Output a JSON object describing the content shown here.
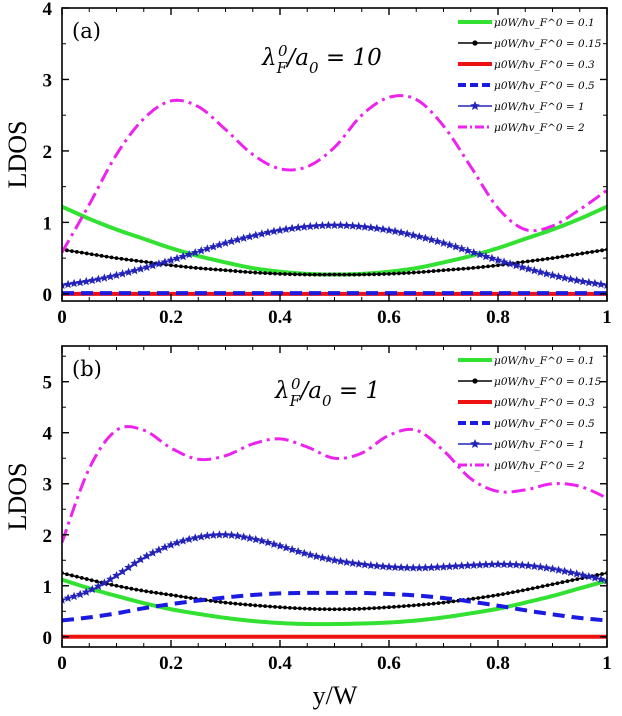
{
  "figure": {
    "xlabel": "y/W",
    "colors": {
      "mu_0.1": "#33e133",
      "mu_0.15": "#000000",
      "mu_0.3": "#ee1111",
      "mu_0.5": "#1a1ae0",
      "mu_1": "#2323b8",
      "mu_2": "#ee22ee"
    }
  },
  "chart_data": [
    {
      "type": "line",
      "panel_label": "(a)",
      "annotation": "λ_F^0/a_0 = 10",
      "xlabel": "",
      "ylabel": "LDOS",
      "xlim": [
        0,
        1
      ],
      "ylim": [
        -0.1,
        4
      ],
      "xticks": [
        "0",
        "0.2",
        "0.4",
        "0.6",
        "0.8",
        "1"
      ],
      "yticks": [
        "0",
        "1",
        "2",
        "3",
        "4"
      ],
      "grid": false,
      "legend_position": "top-right",
      "series": [
        {
          "name": "μ0W/ħv_F^0 = 0.1",
          "key": "mu_0.1",
          "x": [
            0,
            0.05,
            0.1,
            0.15,
            0.2,
            0.25,
            0.3,
            0.35,
            0.4,
            0.45,
            0.5,
            0.55,
            0.6,
            0.65,
            0.7,
            0.75,
            0.8,
            0.85,
            0.9,
            0.95,
            1
          ],
          "y": [
            1.22,
            1.05,
            0.9,
            0.77,
            0.64,
            0.53,
            0.44,
            0.36,
            0.31,
            0.28,
            0.27,
            0.28,
            0.31,
            0.36,
            0.44,
            0.53,
            0.64,
            0.77,
            0.9,
            1.05,
            1.22
          ]
        },
        {
          "name": "μ0W/ħv_F^0 = 0.15",
          "key": "mu_0.15",
          "x": [
            0,
            0.05,
            0.1,
            0.15,
            0.2,
            0.25,
            0.3,
            0.35,
            0.4,
            0.45,
            0.5,
            0.55,
            0.6,
            0.65,
            0.7,
            0.75,
            0.8,
            0.85,
            0.9,
            0.95,
            1
          ],
          "y": [
            0.62,
            0.56,
            0.5,
            0.45,
            0.4,
            0.36,
            0.33,
            0.3,
            0.28,
            0.27,
            0.27,
            0.27,
            0.28,
            0.3,
            0.33,
            0.36,
            0.4,
            0.45,
            0.5,
            0.56,
            0.62
          ]
        },
        {
          "name": "μ0W/ħv_F^0 = 0.3",
          "key": "mu_0.3",
          "x": [
            0,
            1
          ],
          "y": [
            0,
            0
          ]
        },
        {
          "name": "μ0W/ħv_F^0 = 0.5",
          "key": "mu_0.5",
          "x": [
            0,
            1
          ],
          "y": [
            0.01,
            0.01
          ]
        },
        {
          "name": "μ0W/ħv_F^0 = 1",
          "key": "mu_1",
          "x": [
            0,
            0.05,
            0.1,
            0.15,
            0.2,
            0.25,
            0.3,
            0.35,
            0.4,
            0.45,
            0.5,
            0.55,
            0.6,
            0.65,
            0.7,
            0.75,
            0.8,
            0.85,
            0.9,
            0.95,
            1
          ],
          "y": [
            0.12,
            0.18,
            0.26,
            0.36,
            0.47,
            0.59,
            0.71,
            0.81,
            0.89,
            0.94,
            0.96,
            0.94,
            0.89,
            0.81,
            0.71,
            0.59,
            0.47,
            0.36,
            0.26,
            0.18,
            0.12
          ]
        },
        {
          "name": "μ0W/ħv_F^0 = 2",
          "key": "mu_2",
          "x": [
            0,
            0.05,
            0.1,
            0.15,
            0.2,
            0.25,
            0.3,
            0.35,
            0.4,
            0.45,
            0.5,
            0.55,
            0.6,
            0.65,
            0.7,
            0.75,
            0.8,
            0.85,
            0.9,
            0.95,
            1
          ],
          "y": [
            0.58,
            1.25,
            1.95,
            2.45,
            2.7,
            2.62,
            2.3,
            1.95,
            1.75,
            1.78,
            2.05,
            2.5,
            2.75,
            2.72,
            2.35,
            1.78,
            1.2,
            0.9,
            0.95,
            1.18,
            1.45
          ]
        }
      ]
    },
    {
      "type": "line",
      "panel_label": "(b)",
      "annotation": "λ_F^0/a_0 = 1",
      "xlabel": "y/W",
      "ylabel": "LDOS",
      "xlim": [
        0,
        1
      ],
      "ylim": [
        -0.2,
        5.7
      ],
      "xticks": [
        "0",
        "0.2",
        "0.4",
        "0.6",
        "0.8",
        "1"
      ],
      "yticks": [
        "0",
        "1",
        "2",
        "3",
        "4",
        "5"
      ],
      "grid": false,
      "legend_position": "top-right",
      "series": [
        {
          "name": "μ0W/ħv_F^0 = 0.1",
          "key": "mu_0.1",
          "x": [
            0,
            0.05,
            0.1,
            0.15,
            0.2,
            0.25,
            0.3,
            0.35,
            0.4,
            0.45,
            0.5,
            0.55,
            0.6,
            0.65,
            0.7,
            0.75,
            0.8,
            0.85,
            0.9,
            0.95,
            1
          ],
          "y": [
            1.12,
            0.95,
            0.8,
            0.66,
            0.54,
            0.45,
            0.37,
            0.31,
            0.27,
            0.25,
            0.25,
            0.26,
            0.28,
            0.32,
            0.38,
            0.46,
            0.55,
            0.67,
            0.8,
            0.95,
            1.1
          ]
        },
        {
          "name": "μ0W/ħv_F^0 = 0.15",
          "key": "mu_0.15",
          "x": [
            0,
            0.05,
            0.1,
            0.15,
            0.2,
            0.25,
            0.3,
            0.35,
            0.4,
            0.45,
            0.5,
            0.55,
            0.6,
            0.65,
            0.7,
            0.75,
            0.8,
            0.85,
            0.9,
            0.95,
            1
          ],
          "y": [
            1.25,
            1.12,
            1.0,
            0.9,
            0.82,
            0.74,
            0.67,
            0.62,
            0.58,
            0.55,
            0.54,
            0.55,
            0.58,
            0.62,
            0.67,
            0.74,
            0.82,
            0.92,
            1.03,
            1.14,
            1.25
          ]
        },
        {
          "name": "μ0W/ħv_F^0 = 0.3",
          "key": "mu_0.3",
          "x": [
            0,
            1
          ],
          "y": [
            0,
            0
          ]
        },
        {
          "name": "μ0W/ħv_F^0 = 0.5",
          "key": "mu_0.5",
          "x": [
            0,
            0.05,
            0.1,
            0.15,
            0.2,
            0.25,
            0.3,
            0.35,
            0.4,
            0.45,
            0.5,
            0.55,
            0.6,
            0.65,
            0.7,
            0.75,
            0.8,
            0.85,
            0.9,
            0.95,
            1
          ],
          "y": [
            0.32,
            0.38,
            0.46,
            0.56,
            0.64,
            0.71,
            0.77,
            0.82,
            0.85,
            0.86,
            0.86,
            0.86,
            0.84,
            0.81,
            0.76,
            0.69,
            0.61,
            0.52,
            0.44,
            0.37,
            0.32
          ]
        },
        {
          "name": "μ0W/ħv_F^0 = 1",
          "key": "mu_1",
          "x": [
            0,
            0.05,
            0.1,
            0.15,
            0.2,
            0.25,
            0.3,
            0.35,
            0.4,
            0.45,
            0.5,
            0.55,
            0.6,
            0.65,
            0.7,
            0.75,
            0.8,
            0.85,
            0.9,
            0.95,
            1
          ],
          "y": [
            0.72,
            0.9,
            1.2,
            1.55,
            1.8,
            1.95,
            2.0,
            1.92,
            1.78,
            1.62,
            1.5,
            1.42,
            1.37,
            1.35,
            1.37,
            1.4,
            1.42,
            1.4,
            1.33,
            1.22,
            1.1
          ]
        },
        {
          "name": "μ0W/ħv_F^0 = 2",
          "key": "mu_2",
          "x": [
            0,
            0.05,
            0.1,
            0.15,
            0.2,
            0.25,
            0.3,
            0.35,
            0.4,
            0.45,
            0.5,
            0.55,
            0.6,
            0.65,
            0.7,
            0.75,
            0.8,
            0.85,
            0.9,
            0.95,
            1
          ],
          "y": [
            1.85,
            3.3,
            4.05,
            4.05,
            3.7,
            3.48,
            3.55,
            3.78,
            3.88,
            3.72,
            3.5,
            3.6,
            3.95,
            4.05,
            3.65,
            3.1,
            2.85,
            2.88,
            3.0,
            2.95,
            2.72
          ]
        }
      ]
    }
  ]
}
